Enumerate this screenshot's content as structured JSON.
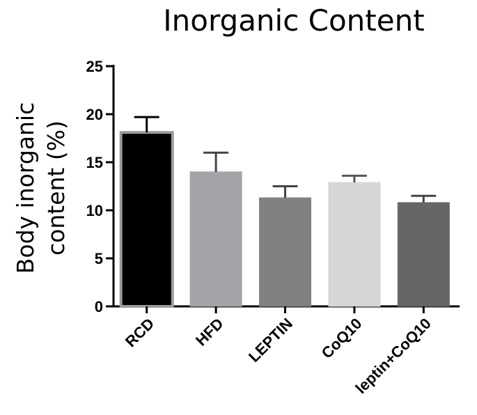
{
  "chart_data": {
    "type": "bar",
    "title": "Inorganic Content",
    "xlabel": "",
    "ylabel": "Body inorganic content (%)",
    "ylabel_lines": [
      "Body inorganic",
      "content (%)"
    ],
    "ylim": [
      0,
      25
    ],
    "yticks": [
      0,
      5,
      10,
      15,
      20,
      25
    ],
    "categories": [
      "RCD",
      "HFD",
      "LEPTIN",
      "CoQ10",
      "leptin+CoQ10"
    ],
    "values": [
      18.1,
      14.0,
      11.3,
      12.9,
      10.8
    ],
    "error_upper": [
      1.6,
      2.0,
      1.2,
      0.7,
      0.7
    ],
    "colors": [
      "#000000",
      "#a3a3a8",
      "#808080",
      "#d6d6d6",
      "#666666"
    ],
    "grid": false,
    "legend": "none"
  }
}
